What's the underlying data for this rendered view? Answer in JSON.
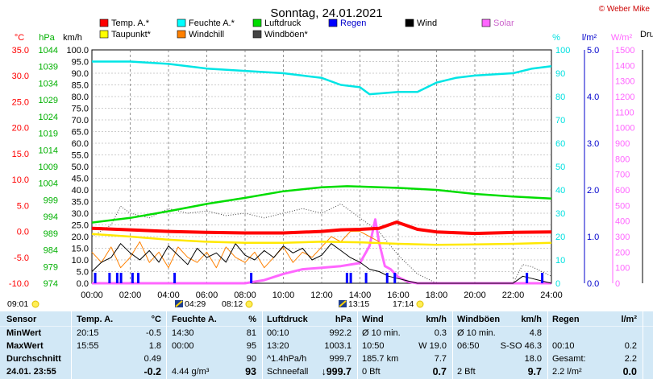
{
  "chart_data": {
    "type": "line",
    "title": "Sonntag, 24.01.2021",
    "copyright": "© Weber Mike",
    "x_ticks": [
      "00:00",
      "02:00",
      "04:00",
      "06:00",
      "08:00",
      "10:00",
      "12:00",
      "14:00",
      "16:00",
      "18:00",
      "20:00",
      "22:00",
      "24:00"
    ],
    "x_range_hours": [
      0,
      24
    ],
    "grid": true,
    "axes": {
      "temp_c": {
        "label": "°C",
        "ticks": [
          "35.0",
          "30.0",
          "25.0",
          "20.0",
          "15.0",
          "10.0",
          "5.0",
          "0.0",
          "-5.0",
          "-10.0"
        ],
        "range": [
          -10,
          35
        ],
        "color": "#ff0000"
      },
      "pressure_hpa": {
        "label": "hPa",
        "ticks": [
          "1044",
          "1039",
          "1034",
          "1029",
          "1024",
          "1019",
          "1014",
          "1009",
          "1004",
          "999",
          "994",
          "989",
          "984",
          "979",
          "974"
        ],
        "range": [
          974,
          1044
        ],
        "color": "#00b000"
      },
      "wind_kmh": {
        "label": "km/h",
        "ticks": [
          "100.0",
          "95.0",
          "90.0",
          "85.0",
          "80.0",
          "75.0",
          "70.0",
          "65.0",
          "60.0",
          "55.0",
          "50.0",
          "45.0",
          "40.0",
          "35.0",
          "30.0",
          "25.0",
          "20.0",
          "15.0",
          "10.0",
          "5.0",
          "0.0"
        ],
        "range": [
          0,
          100
        ],
        "color": "#000000"
      },
      "humidity_pct": {
        "label": "%",
        "ticks": [
          "100",
          "90",
          "80",
          "70",
          "60",
          "50",
          "40",
          "30",
          "20",
          "10",
          "0"
        ],
        "range": [
          0,
          100
        ],
        "color": "#00e0e0"
      },
      "rain_lm2": {
        "label": "l/m²",
        "ticks": [
          "5.0",
          "4.0",
          "3.0",
          "2.0",
          "1.0",
          "0.0"
        ],
        "range": [
          0,
          5
        ],
        "color": "#0000cc"
      },
      "solar_wm2": {
        "label": "W/m²",
        "ticks": [
          "1500",
          "1400",
          "1300",
          "1200",
          "1100",
          "1000",
          "900",
          "800",
          "700",
          "600",
          "500",
          "400",
          "300",
          "200",
          "100",
          "0"
        ],
        "range": [
          0,
          1500
        ],
        "color": "#ff66ff"
      }
    },
    "legend_partial_label": "Druck",
    "legend": [
      {
        "name": "Temp. A.*",
        "color": "#ff0000"
      },
      {
        "name": "Feuchte A.*",
        "color": "#00ffff"
      },
      {
        "name": "Luftdruck",
        "color": "#00dd00"
      },
      {
        "name": "Regen",
        "color": "#0000ff"
      },
      {
        "name": "Wind",
        "color": "#000000"
      },
      {
        "name": "Solar",
        "color": "#ff66ff"
      },
      {
        "name": "Taupunkt*",
        "color": "#ffff00"
      },
      {
        "name": "Windchill",
        "color": "#ff8000"
      },
      {
        "name": "Windböen*",
        "color": "#444444"
      }
    ],
    "series": [
      {
        "name": "Temp. A.*",
        "axis": "temp_c",
        "x": [
          0,
          2,
          4,
          6,
          8,
          10,
          12,
          13,
          14,
          15,
          15.92,
          17,
          18,
          20,
          22,
          24
        ],
        "values": [
          0.6,
          0.3,
          0.0,
          -0.2,
          -0.3,
          -0.3,
          0.0,
          0.3,
          0.4,
          0.6,
          1.8,
          0.4,
          -0.1,
          -0.4,
          -0.2,
          -0.1
        ]
      },
      {
        "name": "Feuchte A.*",
        "axis": "humidity_pct",
        "x": [
          0,
          2,
          4,
          6,
          8,
          10,
          11,
          12,
          13,
          14,
          14.5,
          16,
          17,
          18,
          19,
          20,
          22,
          23,
          24
        ],
        "values": [
          95,
          95,
          94,
          92,
          91,
          90,
          89,
          88,
          85,
          84,
          81,
          82,
          82,
          86,
          88,
          89,
          90,
          92,
          93
        ]
      },
      {
        "name": "Luftdruck",
        "axis": "pressure_hpa",
        "x": [
          0,
          2,
          4,
          6,
          8,
          10,
          12,
          13.33,
          14,
          16,
          18,
          20,
          22,
          24
        ],
        "values": [
          992.2,
          993.6,
          995.6,
          997.8,
          999.6,
          1001.6,
          1002.8,
          1003.1,
          1003.0,
          1002.6,
          1002.0,
          1000.8,
          1000.0,
          999.4
        ]
      },
      {
        "name": "Taupunkt*",
        "axis": "temp_c",
        "x": [
          0,
          2,
          4,
          6,
          8,
          10,
          12,
          14,
          16,
          18,
          20,
          22,
          24
        ],
        "values": [
          -0.5,
          -1.0,
          -1.6,
          -2.0,
          -2.2,
          -2.2,
          -2.0,
          -2.1,
          -2.4,
          -2.6,
          -2.5,
          -2.4,
          -2.2
        ]
      },
      {
        "name": "Wind",
        "axis": "wind_kmh",
        "x": [
          0,
          0.5,
          1,
          1.5,
          2,
          2.5,
          3,
          3.5,
          4,
          4.5,
          5,
          5.5,
          6,
          6.5,
          7,
          7.5,
          8,
          8.5,
          9,
          9.5,
          10,
          10.5,
          11,
          11.5,
          12,
          12.5,
          13,
          13.5,
          14,
          14.5,
          15,
          15.5,
          16,
          16.5,
          17,
          22,
          22.5,
          23,
          23.5,
          24
        ],
        "values": [
          5,
          9,
          11,
          17,
          13,
          10,
          14,
          9,
          16,
          12,
          8,
          15,
          11,
          13,
          9,
          17,
          12,
          10,
          14,
          11,
          16,
          13,
          15,
          10,
          12,
          17,
          14,
          11,
          9,
          6,
          5,
          3,
          2,
          1,
          0,
          0,
          3,
          2,
          1,
          0
        ]
      },
      {
        "name": "Windchill",
        "axis": "temp_c",
        "x": [
          0,
          0.5,
          1,
          1.5,
          2,
          2.5,
          3,
          3.5,
          4,
          4.5,
          5,
          5.5,
          6,
          6.5,
          7,
          7.5,
          8,
          8.5,
          9,
          9.5,
          10,
          10.5,
          11,
          11.5,
          12,
          12.5,
          13,
          13.5,
          14,
          14.5,
          15
        ],
        "values": [
          -4,
          -6,
          -3,
          -7,
          -5,
          -2,
          -6,
          -4,
          -7,
          -3,
          -5,
          -6,
          -4,
          -7,
          -3,
          -5,
          -6,
          -4,
          -7,
          -5,
          -3,
          -6,
          -4,
          -5,
          -3,
          -1,
          -2,
          0,
          0,
          -1,
          -2
        ]
      },
      {
        "name": "Windböen*",
        "axis": "wind_kmh",
        "x": [
          0,
          1,
          1.5,
          2,
          3,
          4,
          5,
          6,
          7,
          8,
          9,
          10,
          11,
          12,
          13,
          14,
          15,
          16,
          16.5,
          17,
          18,
          22,
          22.5,
          23,
          24
        ],
        "values": [
          20,
          25,
          33,
          30,
          28,
          32,
          30,
          31,
          29,
          30,
          28,
          30,
          32,
          30,
          34,
          28,
          22,
          12,
          8,
          4,
          0,
          0,
          8,
          7,
          3
        ]
      },
      {
        "name": "Solar",
        "axis": "solar_wm2",
        "x": [
          0,
          8,
          9,
          10,
          11,
          12,
          13,
          14,
          14.5,
          14.8,
          15,
          15.3,
          15.6,
          16,
          16.5,
          17,
          24
        ],
        "values": [
          0,
          0,
          20,
          60,
          90,
          100,
          110,
          130,
          240,
          410,
          260,
          110,
          90,
          40,
          10,
          0,
          0
        ]
      }
    ],
    "rain_bars_hours": [
      0.15,
      0.9,
      1.3,
      1.5,
      2.1,
      2.4,
      4.3,
      8.3,
      13.3,
      13.5,
      14.3,
      15.4,
      15.8,
      22.7,
      23.5
    ],
    "sun_events": [
      {
        "icon": "sunrise-clock",
        "time": "09:01"
      },
      {
        "icon": "moonrise",
        "time": "04:29"
      },
      {
        "icon": "sunrise",
        "time": "08:12"
      },
      {
        "icon": "moonset",
        "time": "13:15"
      },
      {
        "icon": "sunset",
        "time": "17:14"
      }
    ]
  },
  "table": {
    "headers": {
      "sensor": "Sensor",
      "temp": "Temp. A.",
      "temp_unit": "°C",
      "hum": "Feuchte A.",
      "hum_unit": "%",
      "press": "Luftdruck",
      "press_unit": "hPa",
      "wind": "Wind",
      "wind_unit": "km/h",
      "gust": "Windböen",
      "gust_unit": "km/h",
      "rain": "Regen",
      "rain_unit": "l/m²"
    },
    "rows": [
      {
        "label": "MinWert",
        "temp_t": "20:15",
        "temp_v": "-0.5",
        "hum_t": "14:30",
        "hum_v": "81",
        "press_t": "00:10",
        "press_v": "992.2",
        "wind_t": "Ø 10 min.",
        "wind_v": "0.3",
        "gust_t": "Ø 10 min.",
        "gust_v": "4.8",
        "rain_t": "",
        "rain_v": ""
      },
      {
        "label": "MaxWert",
        "temp_t": "15:55",
        "temp_v": "1.8",
        "hum_t": "00:00",
        "hum_v": "95",
        "press_t": "13:20",
        "press_v": "1003.1",
        "wind_t": "10:50",
        "wind_v": "W 19.0",
        "gust_t": "06:50",
        "gust_v": "S-SO 46.3",
        "rain_t": "00:10",
        "rain_v": "0.2"
      },
      {
        "label": "Durchschnitt",
        "temp_t": "",
        "temp_v": "0.49",
        "hum_t": "",
        "hum_v": "90",
        "press_t": "^1.4hPa/h",
        "press_v": "999.7",
        "wind_t": "185.7 km",
        "wind_v": "7.7",
        "gust_t": "",
        "gust_v": "18.0",
        "rain_t": "Gesamt:",
        "rain_v": "2.2"
      },
      {
        "label": "24.01. 23:55",
        "temp_t": "",
        "temp_v": "-0.2",
        "hum_t": "4.44 g/m³",
        "hum_v": "93",
        "press_t": "Schneefall",
        "press_v": "↓999.7",
        "wind_t": "0 Bft",
        "wind_v": "0.7",
        "gust_t": "2 Bft",
        "gust_v": "9.7",
        "rain_t": "2.2 l/m²",
        "rain_v": "0.0"
      }
    ]
  }
}
